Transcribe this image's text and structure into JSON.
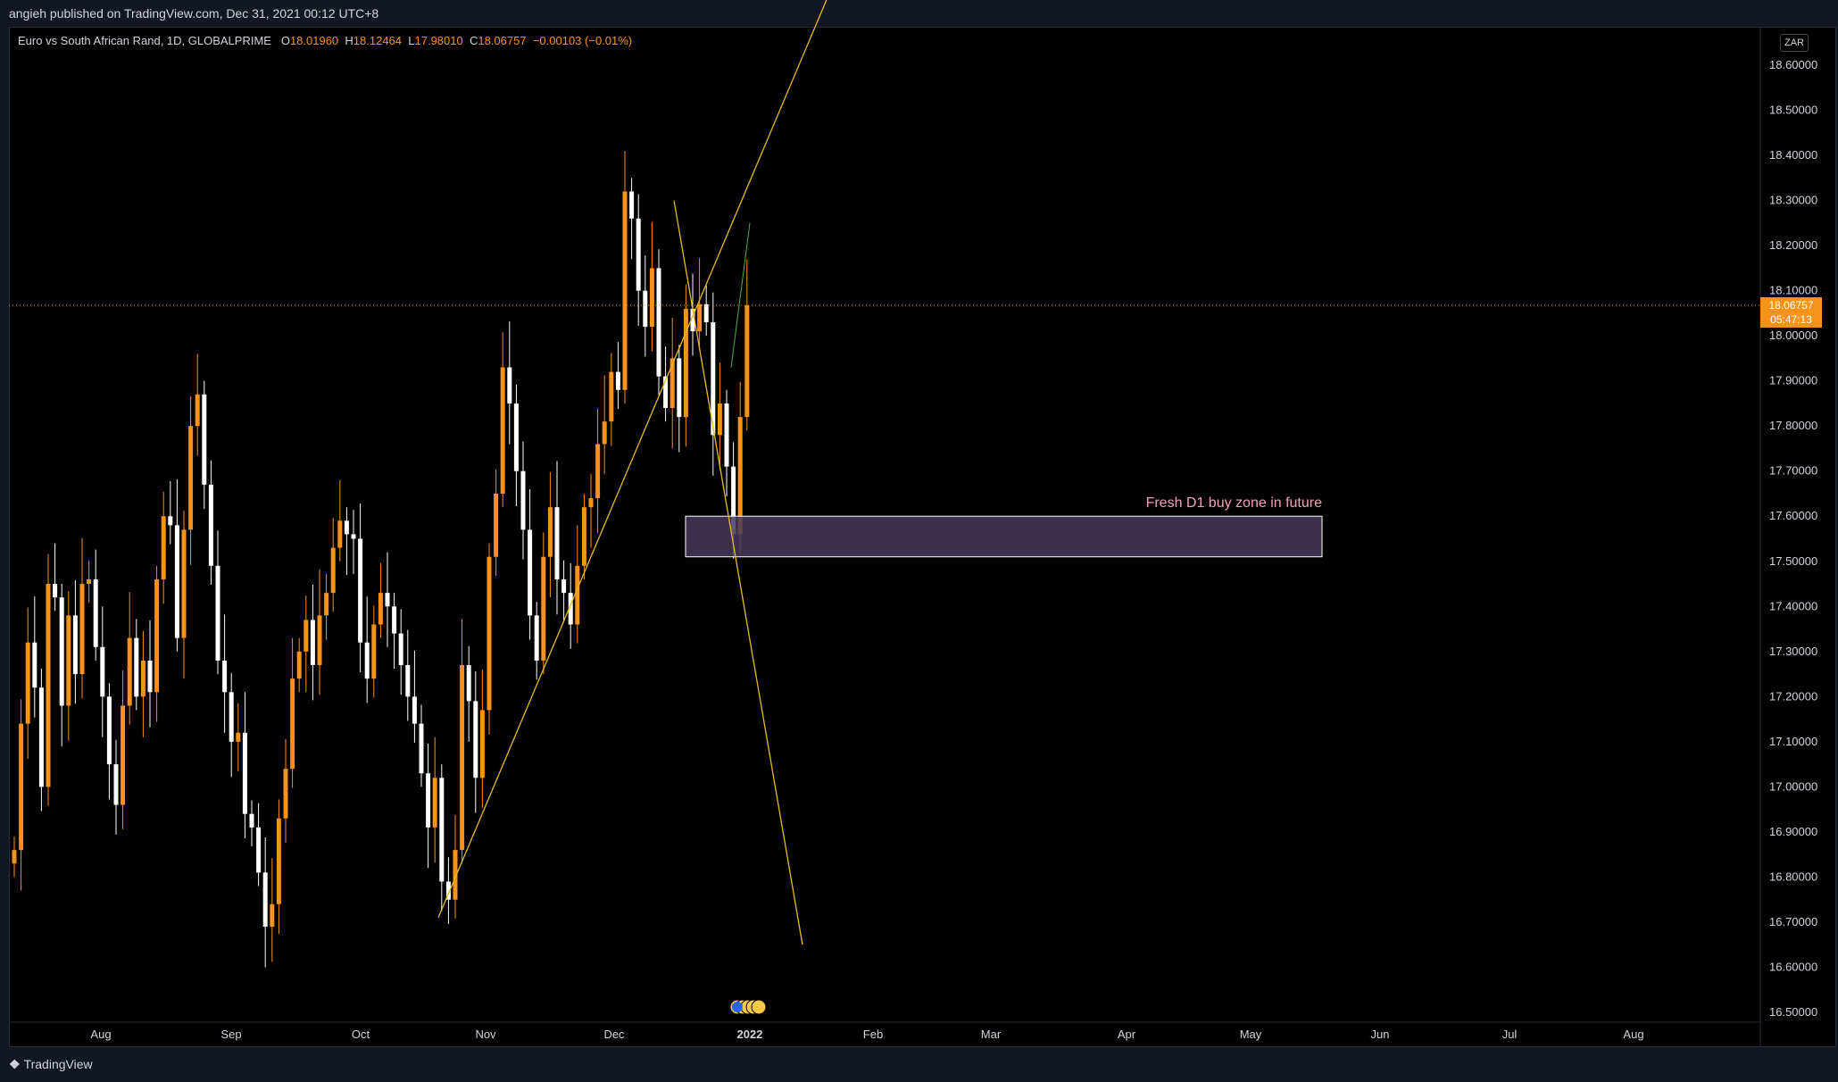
{
  "header": {
    "publish_info": "angieh published on TradingView.com, Dec 31, 2021 00:12 UTC+8"
  },
  "legend": {
    "symbol": "Euro vs South African Rand, 1D, GLOBALPRIME",
    "o_label": "O",
    "o_value": "18.01960",
    "h_label": "H",
    "h_value": "18.12464",
    "l_label": "L",
    "l_value": "17.98010",
    "c_label": "C",
    "c_value": "18.06757",
    "change": "−0.00103 (−0.01%)"
  },
  "axis": {
    "currency": "ZAR",
    "last_price": "18.06757",
    "countdown": "05:47:13"
  },
  "footer": {
    "brand": "TradingView"
  },
  "colors": {
    "bull": "#f7931a",
    "bear": "#ffffff",
    "trendline": "#e8b91c",
    "zone_fill": "#463a5a",
    "zone_text": "#f5a0b8",
    "price_line": "#f7931a"
  },
  "chart_data": {
    "type": "candlestick",
    "title": "",
    "y_axis": {
      "ticks": [
        "18.60000",
        "18.50000",
        "18.40000",
        "18.30000",
        "18.20000",
        "18.10000",
        "18.00000",
        "17.90000",
        "17.80000",
        "17.70000",
        "17.60000",
        "17.50000",
        "17.40000",
        "17.30000",
        "17.20000",
        "17.10000",
        "17.00000",
        "16.90000",
        "16.80000",
        "16.70000",
        "16.60000",
        "16.50000"
      ],
      "range": [
        16.48,
        18.68
      ]
    },
    "x_axis": {
      "ticks": [
        "Aug",
        "Sep",
        "Oct",
        "Nov",
        "Dec",
        "2022",
        "Feb",
        "Mar",
        "Apr",
        "May",
        "Jun",
        "Jul",
        "Aug"
      ]
    },
    "last_price": 18.06757,
    "candles_close": [
      16.86,
      17.14,
      17.32,
      17.22,
      17.0,
      17.45,
      17.42,
      17.18,
      17.38,
      17.25,
      17.45,
      17.46,
      17.31,
      17.2,
      17.05,
      16.96,
      17.18,
      17.33,
      17.2,
      17.28,
      17.21,
      17.46,
      17.6,
      17.58,
      17.33,
      17.57,
      17.8,
      17.87,
      17.67,
      17.49,
      17.28,
      17.21,
      17.1,
      17.12,
      16.94,
      16.91,
      16.81,
      16.69,
      16.74,
      16.93,
      17.04,
      17.24,
      17.3,
      17.37,
      17.27,
      17.38,
      17.43,
      17.53,
      17.59,
      17.56,
      17.55,
      17.32,
      17.24,
      17.36,
      17.43,
      17.4,
      17.34,
      17.27,
      17.2,
      17.14,
      17.03,
      16.91,
      17.02,
      16.79,
      16.75,
      16.86,
      17.27,
      17.19,
      17.02,
      17.17,
      17.51,
      17.65,
      17.93,
      17.85,
      17.7,
      17.57,
      17.38,
      17.28,
      17.51,
      17.62,
      17.46,
      17.43,
      17.36,
      17.49,
      17.62,
      17.64,
      17.76,
      17.81,
      17.92,
      17.88,
      18.32,
      18.26,
      18.1,
      18.02,
      18.15,
      17.91,
      17.84,
      17.95,
      17.82,
      18.06,
      18.01,
      18.07,
      18.03,
      17.78,
      17.85,
      17.71,
      17.56,
      17.82,
      18.06757
    ],
    "annotations": [
      {
        "type": "rectangle",
        "label": "Fresh D1 buy zone in future",
        "price_low": 17.51,
        "price_high": 17.6
      }
    ],
    "grid": false
  }
}
